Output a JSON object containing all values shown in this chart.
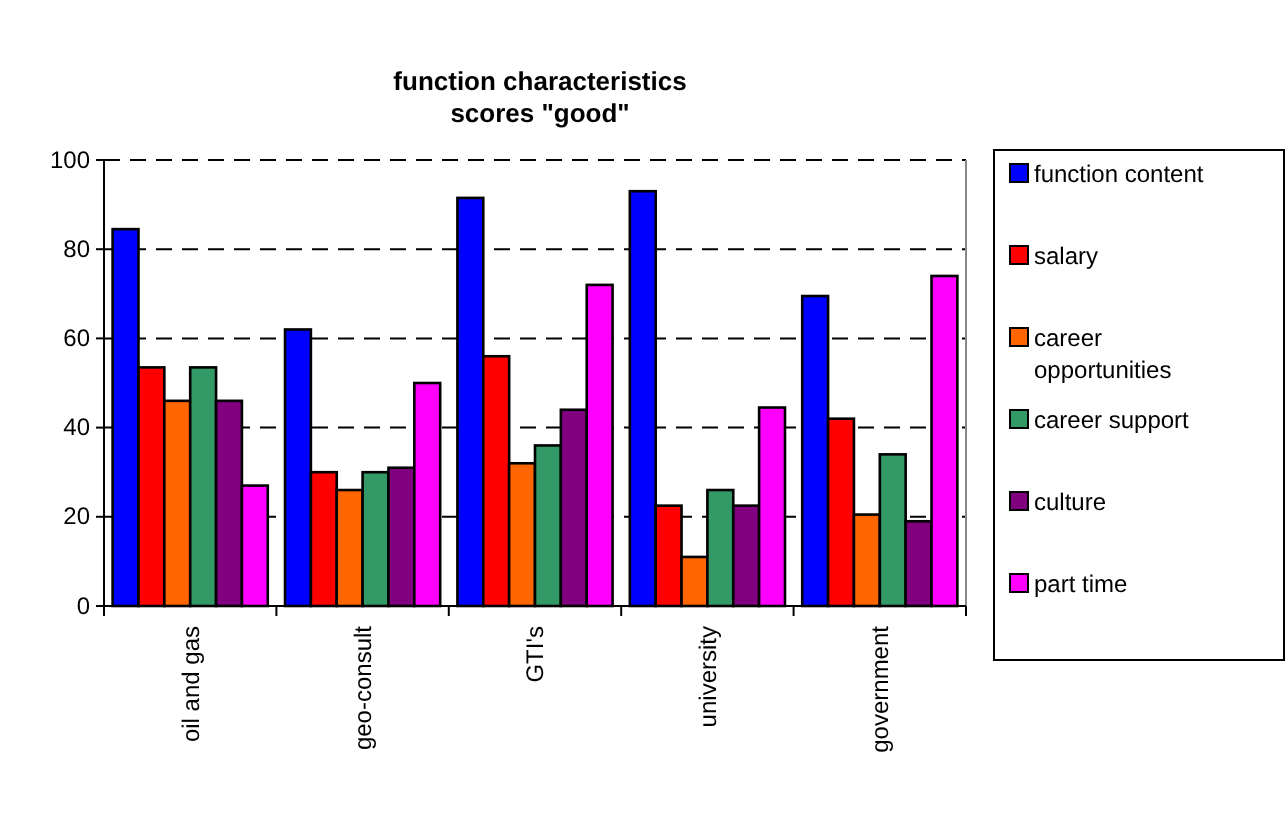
{
  "chart_data": {
    "type": "bar",
    "title": "function characteristics\nscores \"good\"",
    "categories": [
      "oil and gas",
      "geo-consult",
      "GTI's",
      "university",
      "government"
    ],
    "series": [
      {
        "name": "function content",
        "color": "#0000ff",
        "values": [
          84.5,
          62,
          91.5,
          93,
          69.5
        ]
      },
      {
        "name": "salary",
        "color": "#ff0000",
        "values": [
          53.5,
          30,
          56,
          22.5,
          42
        ]
      },
      {
        "name": "career opportunities",
        "color": "#ff6600",
        "values": [
          46,
          26,
          32,
          11,
          20.5
        ]
      },
      {
        "name": "career support",
        "color": "#339966",
        "values": [
          53.5,
          30,
          36,
          26,
          34
        ]
      },
      {
        "name": "culture",
        "color": "#800080",
        "values": [
          46,
          31,
          44,
          22.5,
          19
        ]
      },
      {
        "name": "part time",
        "color": "#ff00ff",
        "values": [
          27,
          50,
          72,
          44.5,
          74
        ]
      }
    ],
    "ylim": [
      0,
      100
    ],
    "yticks": [
      0,
      20,
      40,
      60,
      80,
      100
    ],
    "grid": "y",
    "legend": "right"
  }
}
